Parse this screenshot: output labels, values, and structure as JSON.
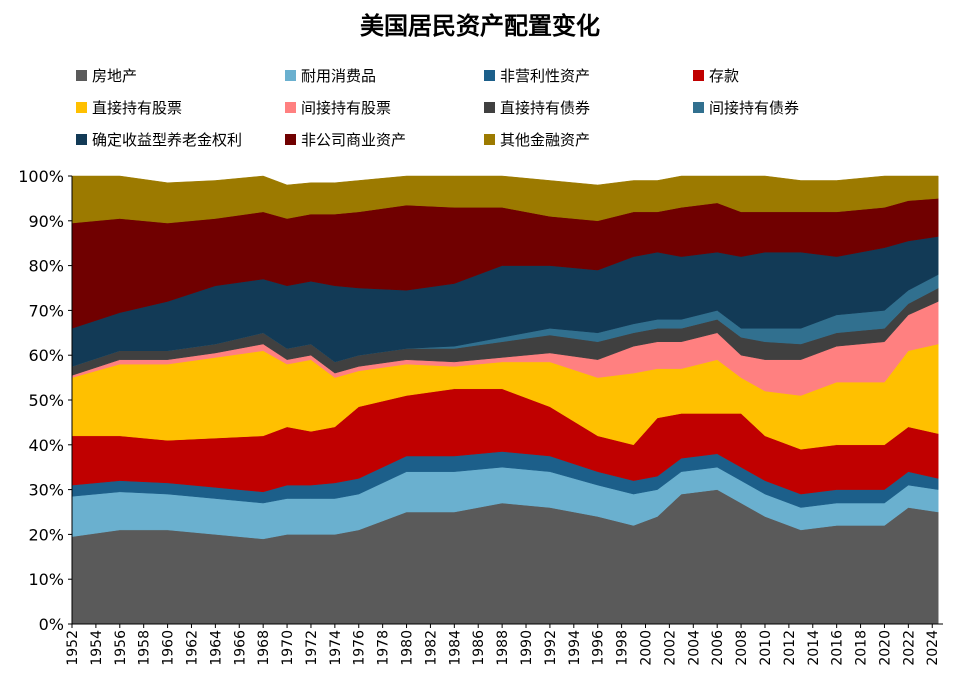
{
  "chart_data": {
    "type": "area",
    "stacked": true,
    "normalized": true,
    "title": "美国居民资产配置变化",
    "xlabel": "",
    "ylabel": "",
    "ylim": [
      0,
      100
    ],
    "yticks": [
      "0%",
      "10%",
      "20%",
      "30%",
      "40%",
      "50%",
      "60%",
      "70%",
      "80%",
      "90%",
      "100%"
    ],
    "x": [
      1952,
      1956,
      1960,
      1964,
      1968,
      1970,
      1972,
      1974,
      1976,
      1980,
      1984,
      1988,
      1992,
      1996,
      1999,
      2001,
      2003,
      2006,
      2008,
      2010,
      2013,
      2016,
      2020,
      2022,
      2024.5
    ],
    "xticks": [
      "1952",
      "1954",
      "1956",
      "1958",
      "1960",
      "1962",
      "1964",
      "1966",
      "1968",
      "1970",
      "1972",
      "1974",
      "1976",
      "1978",
      "1980",
      "1982",
      "1984",
      "1986",
      "1988",
      "1990",
      "1992",
      "1994",
      "1996",
      "1998",
      "2000",
      "2002",
      "2004",
      "2006",
      "2008",
      "2010",
      "2012",
      "2014",
      "2016",
      "2018",
      "2020",
      "2022",
      "2024"
    ],
    "legend_position": "top",
    "series": [
      {
        "name": "房地产",
        "color": "#5a5a5a",
        "values": [
          19.5,
          21,
          21,
          20,
          19,
          20,
          20,
          20,
          21,
          25,
          25,
          27,
          26,
          24,
          22,
          24,
          29,
          30,
          27,
          24,
          21,
          22,
          22,
          26,
          25
        ]
      },
      {
        "name": "耐用消费品",
        "color": "#6ab0cf",
        "values": [
          9,
          8.5,
          8,
          8,
          8,
          8,
          8,
          8,
          8,
          9,
          9,
          8,
          8,
          7,
          7,
          6,
          5,
          5,
          5,
          5,
          5,
          5,
          5,
          5,
          5
        ]
      },
      {
        "name": "非营利性资产",
        "color": "#1c5f8a",
        "values": [
          2.5,
          2.5,
          2.5,
          2.5,
          2.5,
          3,
          3,
          3.5,
          3.5,
          3.5,
          3.5,
          3.5,
          3.5,
          3,
          3,
          3,
          3,
          3,
          3,
          3,
          3,
          3,
          3,
          3,
          2.5
        ]
      },
      {
        "name": "存款",
        "color": "#c00000",
        "values": [
          11,
          10,
          9.5,
          11,
          12.5,
          13,
          12,
          12.5,
          16,
          13.5,
          15,
          14,
          11,
          8,
          8,
          13,
          10,
          9,
          12,
          10,
          10,
          10,
          10,
          10,
          10
        ]
      },
      {
        "name": "直接持有股票",
        "color": "#ffc000",
        "values": [
          13,
          16,
          17,
          18,
          19,
          14,
          16,
          11,
          8,
          7,
          5,
          6,
          10,
          13,
          16,
          11,
          10,
          12,
          8,
          10,
          12,
          14,
          14,
          17,
          20
        ]
      },
      {
        "name": "间接持有股票",
        "color": "#ff8080",
        "values": [
          0.5,
          1,
          1,
          1,
          1.5,
          1,
          1,
          1,
          1,
          1,
          1,
          1,
          2,
          4,
          6,
          6,
          6,
          6,
          5,
          7,
          8,
          8,
          9,
          8,
          9.5
        ]
      },
      {
        "name": "直接持有债券",
        "color": "#404040",
        "values": [
          2,
          2,
          2,
          2,
          2.5,
          2.5,
          2.5,
          2.5,
          2.5,
          2.5,
          3,
          3.5,
          4,
          4,
          3,
          3,
          3,
          3,
          4,
          4,
          3.5,
          3,
          3,
          2.5,
          3
        ]
      },
      {
        "name": "间接持有债券",
        "color": "#31708f",
        "values": [
          0,
          0,
          0,
          0,
          0,
          0,
          0,
          0,
          0,
          0,
          0.5,
          1,
          1.5,
          2,
          2,
          2,
          2,
          2,
          2,
          3,
          3.5,
          4,
          4,
          3,
          3
        ]
      },
      {
        "name": "确定收益型养老金权利",
        "color": "#123a56",
        "values": [
          8.5,
          8.5,
          11,
          13,
          12,
          14,
          14,
          17,
          15,
          13,
          14,
          16,
          14,
          14,
          15,
          15,
          14,
          13,
          16,
          17,
          17,
          13,
          14,
          11,
          8.5
        ]
      },
      {
        "name": "非公司商业资产",
        "color": "#700000",
        "values": [
          23.5,
          21,
          17.5,
          15,
          15,
          15,
          15,
          16,
          17,
          19,
          17,
          13,
          11,
          11,
          10,
          9,
          11,
          11,
          10,
          9,
          9,
          10,
          9,
          9,
          8.5
        ]
      },
      {
        "name": "其他金融资产",
        "color": "#9c7a00",
        "values": [
          10.5,
          9.5,
          9,
          8.5,
          8,
          7.5,
          7,
          7,
          7,
          7,
          7,
          7,
          8,
          8,
          7,
          7,
          7,
          6,
          8,
          8,
          7,
          7,
          7,
          5.5,
          5
        ]
      }
    ]
  }
}
